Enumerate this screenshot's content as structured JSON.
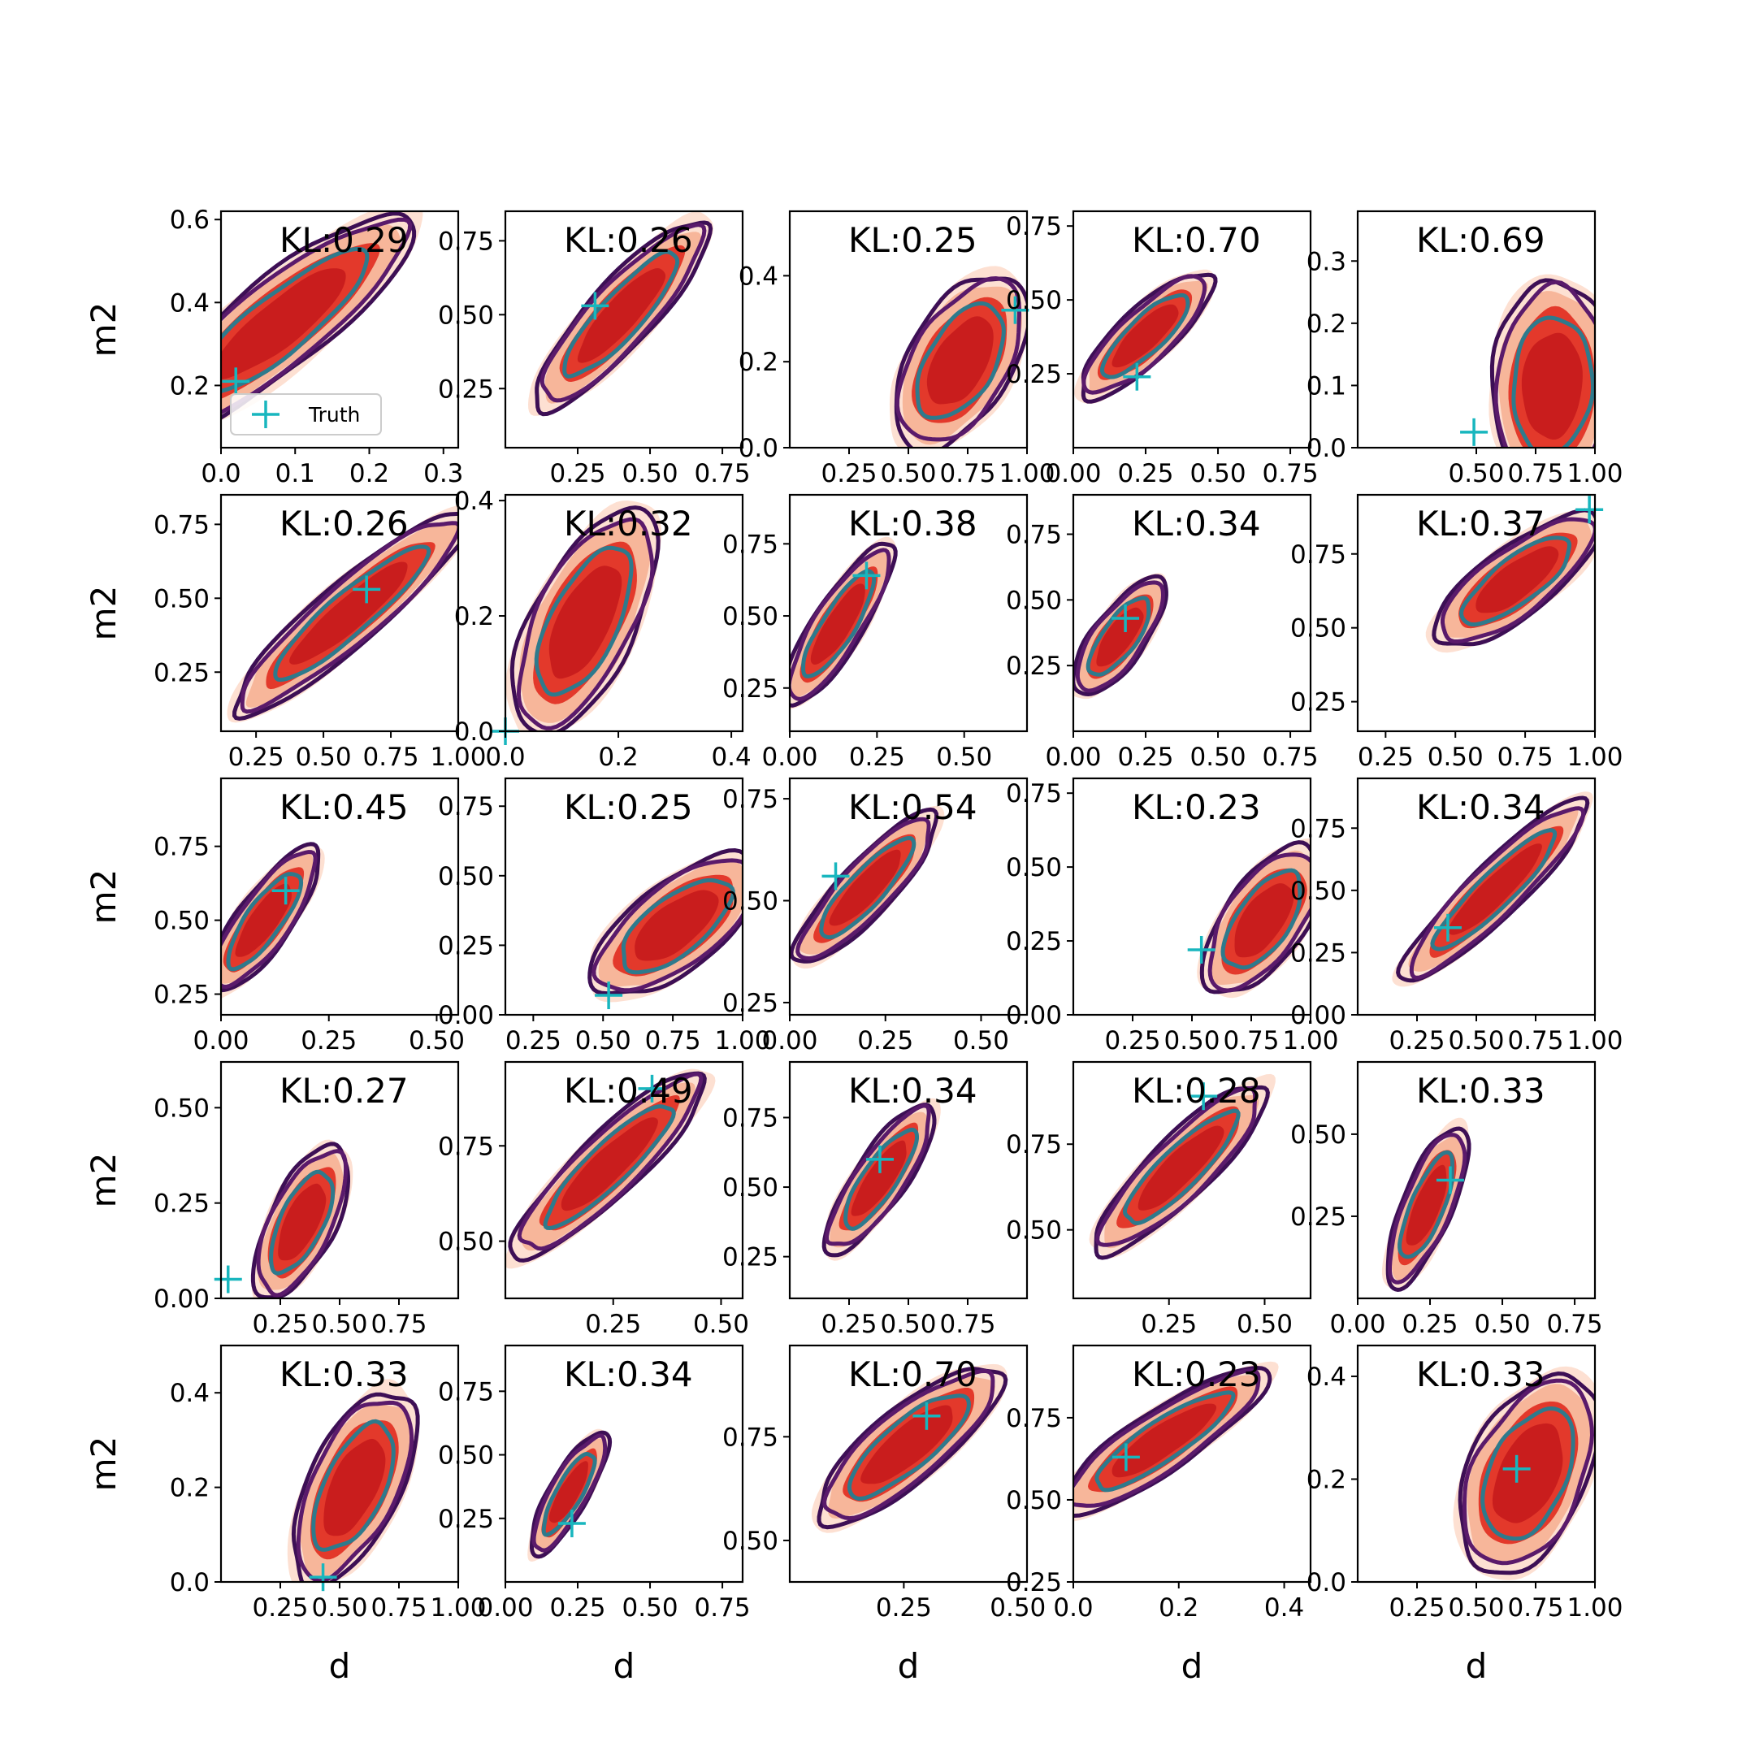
{
  "figure": {
    "xlabel": "d",
    "ylabel": "m2",
    "legend_label": "Truth",
    "colors": {
      "fill_outer": "#fde0d2",
      "fill_mid": "#f7b69a",
      "fill_inner": "#e3392b",
      "fill_core": "#c91d1d",
      "contour_outer": "#3d0f55",
      "contour_mid": "#5a1a6b",
      "contour_inner": "#2e7a8c",
      "truth": "#18b6be"
    }
  },
  "chart_data": [
    {
      "type": "contour",
      "panel": "r1c1",
      "title": "KL:0.29",
      "xlim": [
        0.0,
        0.32
      ],
      "ylim": [
        0.05,
        0.62
      ],
      "xticks": [
        0.0,
        0.1,
        0.2,
        0.3
      ],
      "xtick_labels": [
        "0.0",
        "0.1",
        "0.2",
        "0.3"
      ],
      "yticks": [
        0.2,
        0.4,
        0.6
      ],
      "ytick_labels": [
        "0.2",
        "0.4",
        "0.6"
      ],
      "center": [
        0.08,
        0.35
      ],
      "u": [
        0.14,
        0.22
      ],
      "v": [
        -0.055,
        0.035
      ],
      "truth": [
        0.02,
        0.21
      ],
      "legend": true
    },
    {
      "type": "contour",
      "panel": "r1c2",
      "title": "KL:0.26",
      "xlim": [
        0.0,
        0.82
      ],
      "ylim": [
        0.05,
        0.85
      ],
      "xticks": [
        0.25,
        0.5,
        0.75
      ],
      "xtick_labels": [
        "0.25",
        "0.50",
        "0.75"
      ],
      "yticks": [
        0.25,
        0.5,
        0.75
      ],
      "ytick_labels": [
        "0.25",
        "0.50",
        "0.75"
      ],
      "center": [
        0.4,
        0.5
      ],
      "u": [
        0.24,
        0.26
      ],
      "v": [
        -0.07,
        0.06
      ],
      "truth": [
        0.31,
        0.53
      ]
    },
    {
      "type": "contour",
      "panel": "r1c3",
      "title": "KL:0.25",
      "xlim": [
        0.0,
        1.0
      ],
      "ylim": [
        0.0,
        0.55
      ],
      "xticks": [
        0.25,
        0.5,
        0.75,
        1.0
      ],
      "xtick_labels": [
        "0.25",
        "0.50",
        "0.75",
        "1.00"
      ],
      "yticks": [
        0.0,
        0.2,
        0.4
      ],
      "ytick_labels": [
        "0.0",
        "0.2",
        "0.4"
      ],
      "center": [
        0.72,
        0.2
      ],
      "u": [
        0.2,
        0.15
      ],
      "v": [
        -0.12,
        0.08
      ],
      "truth": [
        0.95,
        0.32
      ]
    },
    {
      "type": "contour",
      "panel": "r1c4",
      "title": "KL:0.70",
      "xlim": [
        0.0,
        0.82
      ],
      "ylim": [
        0.0,
        0.8
      ],
      "xticks": [
        0.0,
        0.25,
        0.5,
        0.75
      ],
      "xtick_labels": [
        "0.00",
        "0.25",
        "0.50",
        "0.75"
      ],
      "yticks": [
        0.25,
        0.5,
        0.75
      ],
      "ytick_labels": [
        "0.25",
        "0.50",
        "0.75"
      ],
      "center": [
        0.25,
        0.38
      ],
      "u": [
        0.18,
        0.17
      ],
      "v": [
        -0.06,
        0.05
      ],
      "truth": [
        0.22,
        0.24
      ]
    },
    {
      "type": "contour",
      "panel": "r1c5",
      "title": "KL:0.69",
      "xlim": [
        0.0,
        1.0
      ],
      "ylim": [
        0.0,
        0.38
      ],
      "xticks": [
        0.5,
        0.75,
        1.0
      ],
      "xtick_labels": [
        "0.50",
        "0.75",
        "1.00"
      ],
      "yticks": [
        0.0,
        0.1,
        0.2,
        0.3
      ],
      "ytick_labels": [
        "0.0",
        "0.1",
        "0.2",
        "0.3"
      ],
      "center": [
        0.82,
        0.1
      ],
      "u": [
        0.16,
        0.1
      ],
      "v": [
        -0.14,
        0.1
      ],
      "truth": [
        0.49,
        0.025
      ]
    },
    {
      "type": "contour",
      "panel": "r2c1",
      "title": "KL:0.26",
      "xlim": [
        0.12,
        1.0
      ],
      "ylim": [
        0.05,
        0.85
      ],
      "xticks": [
        0.25,
        0.5,
        0.75,
        1.0
      ],
      "xtick_labels": [
        "0.25",
        "0.50",
        "0.75",
        "1.00"
      ],
      "yticks": [
        0.25,
        0.5,
        0.75
      ],
      "ytick_labels": [
        "0.25",
        "0.50",
        "0.75"
      ],
      "center": [
        0.6,
        0.45
      ],
      "u": [
        0.36,
        0.28
      ],
      "v": [
        -0.06,
        0.07
      ],
      "truth": [
        0.66,
        0.53
      ]
    },
    {
      "type": "contour",
      "panel": "r2c2",
      "title": "KL:0.32",
      "xlim": [
        0.0,
        0.42
      ],
      "ylim": [
        0.0,
        0.41
      ],
      "xticks": [
        0.0,
        0.2,
        0.4
      ],
      "xtick_labels": [
        "0.0",
        "0.2",
        "0.4"
      ],
      "yticks": [
        0.0,
        0.2,
        0.4
      ],
      "ytick_labels": [
        "0.0",
        "0.2",
        "0.4"
      ],
      "center": [
        0.14,
        0.19
      ],
      "u": [
        0.08,
        0.16
      ],
      "v": [
        -0.07,
        0.03
      ],
      "truth": [
        0.0,
        0.0
      ]
    },
    {
      "type": "contour",
      "panel": "r2c3",
      "title": "KL:0.38",
      "xlim": [
        0.0,
        0.68
      ],
      "ylim": [
        0.1,
        0.92
      ],
      "xticks": [
        0.0,
        0.25,
        0.5
      ],
      "xtick_labels": [
        "0.00",
        "0.25",
        "0.50"
      ],
      "yticks": [
        0.25,
        0.5,
        0.75
      ],
      "ytick_labels": [
        "0.25",
        "0.50",
        "0.75"
      ],
      "center": [
        0.14,
        0.47
      ],
      "u": [
        0.12,
        0.23
      ],
      "v": [
        -0.05,
        0.04
      ],
      "truth": [
        0.22,
        0.64
      ]
    },
    {
      "type": "contour",
      "panel": "r2c4",
      "title": "KL:0.34",
      "xlim": [
        0.0,
        0.82
      ],
      "ylim": [
        0.0,
        0.9
      ],
      "xticks": [
        0.0,
        0.25,
        0.5,
        0.75
      ],
      "xtick_labels": [
        "0.00",
        "0.25",
        "0.50",
        "0.75"
      ],
      "yticks": [
        0.25,
        0.5,
        0.75
      ],
      "ytick_labels": [
        "0.25",
        "0.50",
        "0.75"
      ],
      "center": [
        0.16,
        0.36
      ],
      "u": [
        0.12,
        0.18
      ],
      "v": [
        -0.06,
        0.05
      ],
      "truth": [
        0.18,
        0.43
      ]
    },
    {
      "type": "contour",
      "panel": "r2c5",
      "title": "KL:0.37",
      "xlim": [
        0.15,
        1.0
      ],
      "ylim": [
        0.15,
        0.95
      ],
      "xticks": [
        0.25,
        0.5,
        0.75,
        1.0
      ],
      "xtick_labels": [
        "0.25",
        "0.50",
        "0.75",
        "1.00"
      ],
      "yticks": [
        0.25,
        0.5,
        0.75
      ],
      "ytick_labels": [
        "0.25",
        "0.50",
        "0.75"
      ],
      "center": [
        0.72,
        0.66
      ],
      "u": [
        0.24,
        0.17
      ],
      "v": [
        -0.06,
        0.08
      ],
      "truth": [
        0.98,
        0.9
      ]
    },
    {
      "type": "contour",
      "panel": "r3c1",
      "title": "KL:0.45",
      "xlim": [
        0.0,
        0.55
      ],
      "ylim": [
        0.18,
        0.98
      ],
      "xticks": [
        0.0,
        0.25,
        0.5
      ],
      "xtick_labels": [
        "0.00",
        "0.25",
        "0.50"
      ],
      "yticks": [
        0.25,
        0.5,
        0.75
      ],
      "ytick_labels": [
        "0.25",
        "0.50",
        "0.75"
      ],
      "center": [
        0.1,
        0.5
      ],
      "u": [
        0.1,
        0.2
      ],
      "v": [
        -0.04,
        0.05
      ],
      "truth": [
        0.15,
        0.6
      ]
    },
    {
      "type": "contour",
      "panel": "r3c2",
      "title": "KL:0.25",
      "xlim": [
        0.15,
        1.0
      ],
      "ylim": [
        0.0,
        0.85
      ],
      "xticks": [
        0.25,
        0.5,
        0.75,
        1.0
      ],
      "xtick_labels": [
        "0.25",
        "0.50",
        "0.75",
        "1.00"
      ],
      "yticks": [
        0.0,
        0.25,
        0.5,
        0.75
      ],
      "ytick_labels": [
        "0.00",
        "0.25",
        "0.50",
        "0.75"
      ],
      "center": [
        0.76,
        0.32
      ],
      "u": [
        0.22,
        0.2
      ],
      "v": [
        -0.12,
        0.07
      ],
      "truth": [
        0.52,
        0.07
      ]
    },
    {
      "type": "contour",
      "panel": "r3c3",
      "title": "KL:0.54",
      "xlim": [
        0.0,
        0.62
      ],
      "ylim": [
        0.22,
        0.8
      ],
      "xticks": [
        0.0,
        0.25,
        0.5
      ],
      "xtick_labels": [
        "0.00",
        "0.25",
        "0.50"
      ],
      "yticks": [
        0.25,
        0.5,
        0.75
      ],
      "ytick_labels": [
        "0.25",
        "0.50",
        "0.75"
      ],
      "center": [
        0.2,
        0.53
      ],
      "u": [
        0.15,
        0.15
      ],
      "v": [
        -0.04,
        0.04
      ],
      "truth": [
        0.12,
        0.56
      ]
    },
    {
      "type": "contour",
      "panel": "r3c4",
      "title": "KL:0.23",
      "xlim": [
        0.0,
        1.0
      ],
      "ylim": [
        0.0,
        0.8
      ],
      "xticks": [
        0.25,
        0.5,
        0.75,
        1.0
      ],
      "xtick_labels": [
        "0.25",
        "0.50",
        "0.75",
        "1.00"
      ],
      "yticks": [
        0.0,
        0.25,
        0.5,
        0.75
      ],
      "ytick_labels": [
        "0.00",
        "0.25",
        "0.50",
        "0.75"
      ],
      "center": [
        0.8,
        0.32
      ],
      "u": [
        0.17,
        0.2
      ],
      "v": [
        -0.12,
        0.06
      ],
      "truth": [
        0.54,
        0.22
      ]
    },
    {
      "type": "contour",
      "panel": "r3c5",
      "title": "KL:0.34",
      "xlim": [
        0.0,
        1.0
      ],
      "ylim": [
        0.0,
        0.95
      ],
      "xticks": [
        0.25,
        0.5,
        0.75,
        1.0
      ],
      "xtick_labels": [
        "0.25",
        "0.50",
        "0.75",
        "1.00"
      ],
      "yticks": [
        0.0,
        0.25,
        0.5,
        0.75
      ],
      "ytick_labels": [
        "0.00",
        "0.25",
        "0.50",
        "0.75"
      ],
      "center": [
        0.58,
        0.5
      ],
      "u": [
        0.32,
        0.3
      ],
      "v": [
        -0.07,
        0.06
      ],
      "truth": [
        0.38,
        0.35
      ]
    },
    {
      "type": "contour",
      "panel": "r4c1",
      "title": "KL:0.27",
      "xlim": [
        0.0,
        1.0
      ],
      "ylim": [
        0.0,
        0.62
      ],
      "xticks": [
        0.25,
        0.5,
        0.75
      ],
      "xtick_labels": [
        "0.25",
        "0.50",
        "0.75"
      ],
      "yticks": [
        0.0,
        0.25,
        0.5
      ],
      "ytick_labels": [
        "0.00",
        "0.25",
        "0.50"
      ],
      "center": [
        0.34,
        0.2
      ],
      "u": [
        0.14,
        0.16
      ],
      "v": [
        -0.09,
        0.05
      ],
      "truth": [
        0.03,
        0.05
      ]
    },
    {
      "type": "contour",
      "panel": "r4c2",
      "title": "KL:0.49",
      "xlim": [
        0.0,
        0.55
      ],
      "ylim": [
        0.35,
        0.97
      ],
      "xticks": [
        0.25,
        0.5
      ],
      "xtick_labels": [
        "0.25",
        "0.50"
      ],
      "yticks": [
        0.5,
        0.75
      ],
      "ytick_labels": [
        "0.50",
        "0.75"
      ],
      "center": [
        0.24,
        0.7
      ],
      "u": [
        0.18,
        0.2
      ],
      "v": [
        -0.05,
        0.04
      ],
      "truth": [
        0.34,
        0.9
      ]
    },
    {
      "type": "contour",
      "panel": "r4c3",
      "title": "KL:0.34",
      "xlim": [
        0.0,
        1.0
      ],
      "ylim": [
        0.1,
        0.95
      ],
      "xticks": [
        0.25,
        0.5,
        0.75
      ],
      "xtick_labels": [
        "0.25",
        "0.50",
        "0.75"
      ],
      "yticks": [
        0.25,
        0.5,
        0.75
      ],
      "ytick_labels": [
        "0.25",
        "0.50",
        "0.75"
      ],
      "center": [
        0.38,
        0.53
      ],
      "u": [
        0.18,
        0.22
      ],
      "v": [
        -0.07,
        0.05
      ],
      "truth": [
        0.38,
        0.6
      ]
    },
    {
      "type": "contour",
      "panel": "r4c4",
      "title": "KL:0.28",
      "xlim": [
        0.0,
        0.62
      ],
      "ylim": [
        0.3,
        0.99
      ],
      "xticks": [
        0.25,
        0.5
      ],
      "xtick_labels": [
        "0.25",
        "0.50"
      ],
      "yticks": [
        0.5,
        0.75
      ],
      "ytick_labels": [
        "0.50",
        "0.75"
      ],
      "center": [
        0.28,
        0.68
      ],
      "u": [
        0.18,
        0.2
      ],
      "v": [
        -0.05,
        0.05
      ],
      "truth": [
        0.34,
        0.89
      ]
    },
    {
      "type": "contour",
      "panel": "r4c5",
      "title": "KL:0.33",
      "xlim": [
        0.0,
        0.82
      ],
      "ylim": [
        0.0,
        0.72
      ],
      "xticks": [
        0.0,
        0.25,
        0.5,
        0.75
      ],
      "xtick_labels": [
        "0.00",
        "0.25",
        "0.50",
        "0.75"
      ],
      "yticks": [
        0.25,
        0.5
      ],
      "ytick_labels": [
        "0.25",
        "0.50"
      ],
      "center": [
        0.24,
        0.28
      ],
      "u": [
        0.1,
        0.2
      ],
      "v": [
        -0.06,
        0.04
      ],
      "truth": [
        0.32,
        0.36
      ]
    },
    {
      "type": "contour",
      "panel": "r5c1",
      "title": "KL:0.33",
      "xlim": [
        0.0,
        1.0
      ],
      "ylim": [
        0.0,
        0.5
      ],
      "xticks": [
        0.25,
        0.5,
        0.75,
        1.0
      ],
      "xtick_labels": [
        "0.25",
        "0.50",
        "0.75",
        "1.00"
      ],
      "yticks": [
        0.0,
        0.2,
        0.4
      ],
      "ytick_labels": [
        "0.0",
        "0.2",
        "0.4"
      ],
      "center": [
        0.56,
        0.2
      ],
      "u": [
        0.18,
        0.16
      ],
      "v": [
        -0.12,
        0.06
      ],
      "truth": [
        0.43,
        0.01
      ]
    },
    {
      "type": "contour",
      "panel": "r5c2",
      "title": "KL:0.34",
      "xlim": [
        0.0,
        0.82
      ],
      "ylim": [
        0.0,
        0.93
      ],
      "xticks": [
        0.0,
        0.25,
        0.5,
        0.75
      ],
      "xtick_labels": [
        "0.00",
        "0.25",
        "0.50",
        "0.75"
      ],
      "yticks": [
        0.25,
        0.5,
        0.75
      ],
      "ytick_labels": [
        "0.25",
        "0.50",
        "0.75"
      ],
      "center": [
        0.22,
        0.35
      ],
      "u": [
        0.1,
        0.2
      ],
      "v": [
        -0.05,
        0.03
      ],
      "truth": [
        0.23,
        0.23
      ]
    },
    {
      "type": "contour",
      "panel": "r5c3",
      "title": "KL:0.70",
      "xlim": [
        0.0,
        0.52
      ],
      "ylim": [
        0.4,
        0.97
      ],
      "xticks": [
        0.25,
        0.5
      ],
      "xtick_labels": [
        "0.25",
        "0.50"
      ],
      "yticks": [
        0.5,
        0.75
      ],
      "ytick_labels": [
        "0.50",
        "0.75"
      ],
      "center": [
        0.26,
        0.73
      ],
      "u": [
        0.16,
        0.15
      ],
      "v": [
        -0.05,
        0.05
      ],
      "truth": [
        0.3,
        0.8
      ]
    },
    {
      "type": "contour",
      "panel": "r5c4",
      "title": "KL:0.23",
      "xlim": [
        0.0,
        0.45
      ],
      "ylim": [
        0.25,
        0.97
      ],
      "xticks": [
        0.0,
        0.2,
        0.4
      ],
      "xtick_labels": [
        "0.0",
        "0.2",
        "0.4"
      ],
      "yticks": [
        0.25,
        0.5,
        0.75
      ],
      "ytick_labels": [
        "0.25",
        "0.50",
        "0.75"
      ],
      "center": [
        0.17,
        0.68
      ],
      "u": [
        0.16,
        0.18
      ],
      "v": [
        -0.04,
        0.05
      ],
      "truth": [
        0.1,
        0.63
      ]
    },
    {
      "type": "contour",
      "panel": "r5c5",
      "title": "KL:0.33",
      "xlim": [
        0.0,
        1.0
      ],
      "ylim": [
        0.0,
        0.46
      ],
      "xticks": [
        0.25,
        0.5,
        0.75,
        1.0
      ],
      "xtick_labels": [
        "0.25",
        "0.50",
        "0.75",
        "1.00"
      ],
      "yticks": [
        0.0,
        0.2,
        0.4
      ],
      "ytick_labels": [
        "0.0",
        "0.2",
        "0.4"
      ],
      "center": [
        0.72,
        0.21
      ],
      "u": [
        0.2,
        0.14
      ],
      "v": [
        -0.14,
        0.08
      ],
      "truth": [
        0.67,
        0.22
      ]
    }
  ]
}
